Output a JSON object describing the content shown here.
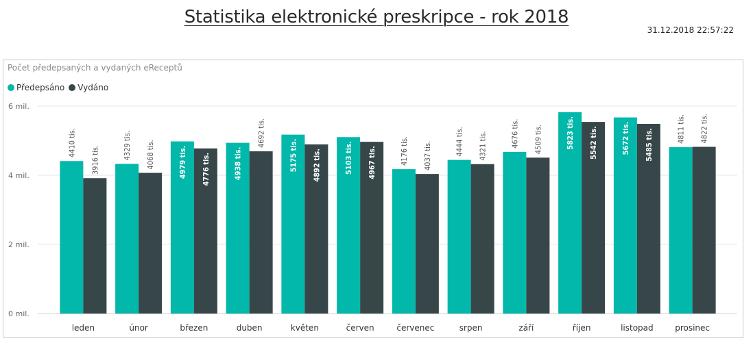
{
  "page": {
    "title": "Statistika elektronické preskripce - rok 2018",
    "timestamp": "31.12.2018 22:57:22"
  },
  "colors": {
    "predepsano": "#01b8aa",
    "vydano": "#374649",
    "grid": "#e6e6e6"
  },
  "chart_data": {
    "type": "bar",
    "title": "Počet předepsaných a vydaných eReceptů",
    "xlabel": "",
    "ylabel": "",
    "ylim": [
      0,
      6000000
    ],
    "yticks": [
      0,
      2000000,
      4000000,
      6000000
    ],
    "ytick_labels": [
      "0 mil.",
      "2 mil.",
      "4 mil.",
      "6 mil."
    ],
    "categories": [
      "leden",
      "únor",
      "březen",
      "duben",
      "květen",
      "červen",
      "červenec",
      "srpen",
      "září",
      "říjen",
      "listopad",
      "prosinec"
    ],
    "legend": [
      "Předepsáno",
      "Vydáno"
    ],
    "series": [
      {
        "name": "Předepsáno",
        "values": [
          4410000,
          4329000,
          4979000,
          4938000,
          5175000,
          5103000,
          4176000,
          4444000,
          4676000,
          5823000,
          5672000,
          4811000
        ],
        "labels": [
          "4410 tis.",
          "4329 tis.",
          "4979 tis.",
          "4938 tis.",
          "5175 tis.",
          "5103 tis.",
          "4176 tis.",
          "4444 tis.",
          "4676 tis.",
          "5823 tis.",
          "5672 tis.",
          "4811 tis."
        ]
      },
      {
        "name": "Vydáno",
        "values": [
          3916000,
          4068000,
          4776000,
          4692000,
          4892000,
          4967000,
          4037000,
          4321000,
          4509000,
          5542000,
          5485000,
          4822000
        ],
        "labels": [
          "3916 tis.",
          "4068 tis.",
          "4776 tis.",
          "4692 tis.",
          "4892 tis.",
          "4967 tis.",
          "4037 tis.",
          "4321 tis.",
          "4509 tis.",
          "5542 tis.",
          "5485 tis.",
          "4822 tis."
        ]
      }
    ]
  }
}
